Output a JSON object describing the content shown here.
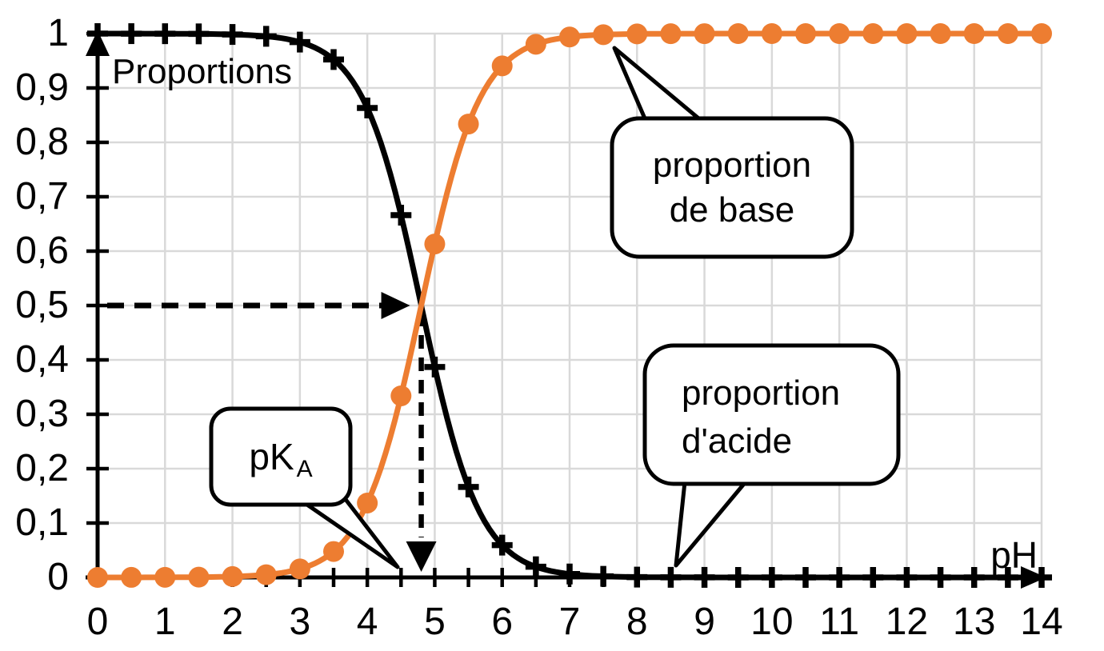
{
  "labels": {
    "y_axis_title": "Proportions",
    "x_axis_title": "pH"
  },
  "axis": {
    "x_tick_labels": [
      "0",
      "1",
      "2",
      "3",
      "4",
      "5",
      "6",
      "7",
      "8",
      "9",
      "10",
      "11",
      "12",
      "13",
      "14"
    ],
    "y_tick_labels": [
      "0",
      "0,1",
      "0,2",
      "0,3",
      "0,4",
      "0,5",
      "0,6",
      "0,7",
      "0,8",
      "0,9",
      "1"
    ]
  },
  "bubbles": {
    "base": {
      "line1": "proportion",
      "line2": "de base"
    },
    "acid": {
      "line1": "proportion",
      "line2": "d'acide"
    },
    "pka": {
      "main": "pK",
      "sub": "A"
    }
  },
  "colors": {
    "acid_curve": "#000000",
    "base_curve": "#ED7D31",
    "grid": "#D9D9D9",
    "background": "#FFFFFF"
  },
  "chart_data": {
    "type": "line",
    "title": "",
    "xlabel": "pH",
    "ylabel": "Proportions",
    "xlim": [
      0,
      14
    ],
    "ylim": [
      0,
      1
    ],
    "grid": true,
    "x_major_tick_step": 1,
    "x_minor_tick_step": 0.5,
    "y_tick_step": 0.1,
    "pKa": 4.8,
    "x": [
      0,
      0.5,
      1,
      1.5,
      2,
      2.5,
      3,
      3.5,
      4,
      4.5,
      5,
      5.5,
      6,
      6.5,
      7,
      7.5,
      8,
      8.5,
      9,
      9.5,
      10,
      10.5,
      11,
      11.5,
      12,
      12.5,
      13,
      13.5,
      14
    ],
    "series": [
      {
        "name": "proportion d'acide",
        "color": "#000000",
        "marker": "plus",
        "values": [
          1,
          0.9999,
          0.9998,
          0.9995,
          0.9984,
          0.995,
          0.9844,
          0.9523,
          0.8632,
          0.6661,
          0.3869,
          0.1663,
          0.0594,
          0.0196,
          0.0063,
          0.002,
          0.0006,
          0.0002,
          0.0001,
          0,
          0,
          0,
          0,
          0,
          0,
          0,
          0,
          0,
          0
        ]
      },
      {
        "name": "proportion de base",
        "color": "#ED7D31",
        "marker": "circle",
        "values": [
          0,
          0.0001,
          0.0002,
          0.0005,
          0.0016,
          0.005,
          0.0156,
          0.0477,
          0.1368,
          0.3339,
          0.6131,
          0.8337,
          0.9406,
          0.9804,
          0.9937,
          0.998,
          0.9994,
          0.9998,
          0.9999,
          1,
          1,
          1,
          1,
          1,
          1,
          1,
          1,
          1,
          1
        ]
      }
    ],
    "annotations": {
      "h_dashed_arrow_y": 0.5,
      "v_dashed_arrow_x": 4.8,
      "pka_label": "pKA",
      "crossing_point": {
        "pH": 4.8,
        "proportion": 0.5
      }
    }
  }
}
